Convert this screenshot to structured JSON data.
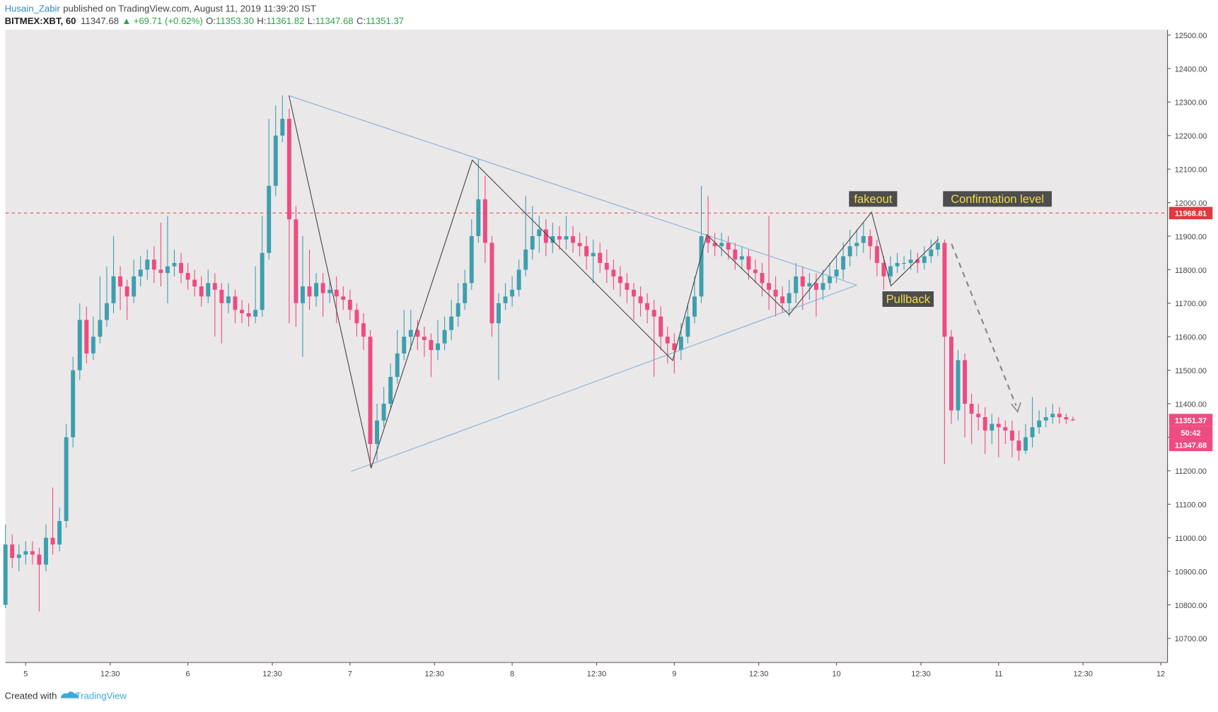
{
  "header": {
    "author": "Husain_Zabir",
    "published": "published on TradingView.com, August 11, 2019 11:39:20 IST",
    "symbol": "BITMEX:XBT, 60",
    "last": "11347.68",
    "arrow": "▲",
    "change": "+69.71 (+0.62%)",
    "o_label": "O:",
    "o": "11353.30",
    "h_label": "H:",
    "h": "11361.82",
    "l_label": "L:",
    "l": "11347.68",
    "c_label": "C:",
    "c": "11351.37"
  },
  "footer": {
    "created": "Created with",
    "brand": "TradingView"
  },
  "chart_data": {
    "type": "candlestick",
    "up_color": "#3d9fae",
    "down_color": "#ee4b81",
    "open": [
      10800,
      10980,
      10940,
      10950,
      10960,
      10950,
      10920,
      11000,
      10980,
      11050,
      11300,
      11500,
      11650,
      11550,
      11600,
      11650,
      11700,
      11780,
      11750,
      11720,
      11780,
      11800,
      11830,
      11800,
      11790,
      11810,
      11820,
      11790,
      11770,
      11750,
      11720,
      11760,
      11740,
      11700,
      11720,
      11680,
      11670,
      11660,
      11680,
      11850,
      12050,
      12200,
      12250,
      11950,
      11700,
      11750,
      11720,
      11760,
      11730,
      11740,
      11720,
      11710,
      11680,
      11640,
      11600,
      11280,
      11350,
      11400,
      11480,
      11550,
      11600,
      11620,
      11600,
      11590,
      11560,
      11580,
      11620,
      11660,
      11700,
      11760,
      11900,
      12010,
      11880,
      11640,
      11700,
      11720,
      11740,
      11800,
      11860,
      11900,
      11920,
      11880,
      11900,
      11890,
      11900,
      11880,
      11870,
      11840,
      11850,
      11820,
      11800,
      11780,
      11760,
      11740,
      11720,
      11700,
      11680,
      11660,
      11600,
      11580,
      11560,
      11600,
      11660,
      11720,
      11900,
      11880,
      11870,
      11880,
      11860,
      11830,
      11840,
      11800,
      11790,
      11760,
      11740,
      11720,
      11700,
      11730,
      11780,
      11750,
      11760,
      11740,
      11760,
      11780,
      11800,
      11840,
      11870,
      11880,
      11900,
      11870,
      11820,
      11780,
      11810,
      11820,
      11820,
      11830,
      11820,
      11840,
      11860,
      11880,
      11600,
      11380,
      11530,
      11400,
      11370,
      11360,
      11320,
      11340,
      11330,
      11320,
      11290,
      11260,
      11300,
      11330,
      11350,
      11360,
      11370,
      11360,
      11353.3
    ],
    "high": [
      11040,
      11010,
      10980,
      10990,
      10990,
      10970,
      11040,
      11150,
      11090,
      11340,
      11540,
      11700,
      11690,
      11660,
      11780,
      11810,
      11900,
      11810,
      11770,
      11830,
      11840,
      11860,
      11870,
      11940,
      11960,
      11860,
      11850,
      11820,
      11800,
      11780,
      11800,
      11790,
      11760,
      11760,
      11740,
      11710,
      11700,
      11810,
      11960,
      12250,
      12290,
      12320,
      12280,
      11990,
      11900,
      11860,
      11790,
      11790,
      11770,
      11780,
      11750,
      11740,
      11700,
      11670,
      11620,
      11400,
      11450,
      11520,
      11620,
      11680,
      11680,
      11650,
      11630,
      11610,
      11650,
      11660,
      11710,
      11760,
      11800,
      11950,
      12130,
      12080,
      11900,
      11730,
      11760,
      11780,
      11830,
      12020,
      11990,
      11960,
      11950,
      11940,
      11930,
      11960,
      11930,
      11910,
      11900,
      11890,
      11880,
      11860,
      11830,
      11810,
      11790,
      11760,
      11750,
      11730,
      11710,
      11690,
      11630,
      11610,
      11640,
      11700,
      11780,
      12050,
      12020,
      11910,
      11910,
      11900,
      11880,
      11870,
      11860,
      11830,
      11820,
      11960,
      11780,
      11750,
      11770,
      11820,
      11810,
      11790,
      11790,
      11800,
      11820,
      11840,
      11880,
      11920,
      11920,
      11940,
      11920,
      11890,
      11840,
      11840,
      11850,
      11840,
      11860,
      11850,
      11870,
      11890,
      11900,
      11890,
      11620,
      11560,
      11550,
      11430,
      11400,
      11390,
      11370,
      11360,
      11350,
      11350,
      11320,
      11340,
      11420,
      11380,
      11390,
      11400,
      11390,
      11370,
      11361.82
    ],
    "low": [
      10790,
      10910,
      10900,
      10920,
      10920,
      10780,
      10900,
      10950,
      10960,
      11030,
      11270,
      11470,
      11520,
      11530,
      11580,
      11630,
      11670,
      11680,
      11650,
      11700,
      11750,
      11770,
      11760,
      11750,
      11700,
      11780,
      11760,
      11740,
      11720,
      11690,
      11700,
      11600,
      11580,
      11670,
      11640,
      11640,
      11630,
      11640,
      11660,
      11830,
      12020,
      12180,
      11640,
      11630,
      11540,
      11680,
      11690,
      11660,
      11700,
      11640,
      11680,
      11650,
      11600,
      11560,
      11210,
      11230,
      11330,
      11380,
      11460,
      11530,
      11560,
      11560,
      11540,
      11480,
      11530,
      11560,
      11590,
      11630,
      11680,
      11740,
      11880,
      11820,
      11600,
      11470,
      11680,
      11690,
      11720,
      11780,
      11830,
      11850,
      11840,
      11850,
      11860,
      11860,
      11850,
      11840,
      11800,
      11760,
      11790,
      11760,
      11740,
      11720,
      11700,
      11650,
      11660,
      11640,
      11480,
      11560,
      11520,
      11490,
      11530,
      11580,
      11640,
      11700,
      11850,
      11840,
      11840,
      11830,
      11800,
      11800,
      11770,
      11760,
      11720,
      11680,
      11660,
      11670,
      11660,
      11700,
      11680,
      11710,
      11660,
      11710,
      11740,
      11760,
      11770,
      11810,
      11840,
      11850,
      11830,
      11780,
      11740,
      11760,
      11790,
      11800,
      11800,
      11790,
      11800,
      11820,
      11840,
      11220,
      11340,
      11350,
      11300,
      11280,
      11320,
      11250,
      11280,
      11240,
      11280,
      11240,
      11230,
      11250,
      11270,
      11310,
      11330,
      11340,
      11340,
      11340,
      11347.68
    ],
    "close": [
      10980,
      10940,
      10950,
      10960,
      10950,
      10920,
      11000,
      10980,
      11050,
      11300,
      11500,
      11650,
      11550,
      11600,
      11650,
      11700,
      11780,
      11750,
      11720,
      11780,
      11800,
      11830,
      11800,
      11790,
      11810,
      11820,
      11790,
      11770,
      11750,
      11720,
      11760,
      11740,
      11700,
      11720,
      11680,
      11670,
      11660,
      11680,
      11850,
      12050,
      12200,
      12250,
      11950,
      11700,
      11750,
      11720,
      11760,
      11730,
      11740,
      11720,
      11710,
      11680,
      11640,
      11600,
      11280,
      11350,
      11400,
      11480,
      11550,
      11600,
      11620,
      11600,
      11590,
      11560,
      11580,
      11620,
      11660,
      11700,
      11760,
      11900,
      12010,
      11880,
      11640,
      11700,
      11720,
      11740,
      11800,
      11860,
      11900,
      11920,
      11880,
      11900,
      11890,
      11900,
      11880,
      11870,
      11840,
      11850,
      11820,
      11800,
      11780,
      11760,
      11740,
      11720,
      11700,
      11680,
      11660,
      11600,
      11580,
      11560,
      11600,
      11660,
      11720,
      11900,
      11880,
      11870,
      11880,
      11860,
      11830,
      11840,
      11800,
      11790,
      11760,
      11740,
      11720,
      11700,
      11730,
      11780,
      11750,
      11760,
      11740,
      11760,
      11780,
      11800,
      11840,
      11870,
      11880,
      11900,
      11870,
      11820,
      11780,
      11810,
      11820,
      11820,
      11830,
      11820,
      11840,
      11860,
      11880,
      11600,
      11380,
      11530,
      11400,
      11370,
      11360,
      11320,
      11340,
      11330,
      11320,
      11290,
      11260,
      11300,
      11330,
      11350,
      11360,
      11370,
      11360,
      11353.3,
      11351.37
    ],
    "xlim": [
      0,
      172
    ],
    "xticks": [
      {
        "value": 3,
        "label": "5"
      },
      {
        "value": 15.5,
        "label": "12:30"
      },
      {
        "value": 27,
        "label": "6"
      },
      {
        "value": 39.5,
        "label": "12:30"
      },
      {
        "value": 51,
        "label": "7"
      },
      {
        "value": 63.5,
        "label": "12:30"
      },
      {
        "value": 75,
        "label": "8"
      },
      {
        "value": 87.5,
        "label": "12:30"
      },
      {
        "value": 99,
        "label": "9"
      },
      {
        "value": 111.5,
        "label": "12:30"
      },
      {
        "value": 123,
        "label": "10"
      },
      {
        "value": 135.5,
        "label": "12:30"
      },
      {
        "value": 147,
        "label": "11"
      },
      {
        "value": 159.5,
        "label": "12:30"
      },
      {
        "value": 171,
        "label": "12"
      }
    ],
    "ylim": [
      10628,
      12516
    ],
    "yticks": [
      {
        "value": 10700,
        "label": "10700.00"
      },
      {
        "value": 10800,
        "label": "10800.00"
      },
      {
        "value": 10900,
        "label": "10900.00"
      },
      {
        "value": 11000,
        "label": "11000.00"
      },
      {
        "value": 11100,
        "label": "11100.00"
      },
      {
        "value": 11200,
        "label": "11200.00"
      },
      {
        "value": 11300,
        "label": "11300.00"
      },
      {
        "value": 11400,
        "label": "11400.00"
      },
      {
        "value": 11500,
        "label": "11500.00"
      },
      {
        "value": 11600,
        "label": "11600.00"
      },
      {
        "value": 11700,
        "label": "11700.00"
      },
      {
        "value": 11800,
        "label": "11800.00"
      },
      {
        "value": 11900,
        "label": "11900.00"
      },
      {
        "value": 12000,
        "label": "12000.00"
      },
      {
        "value": 12100,
        "label": "12100.00"
      },
      {
        "value": 12200,
        "label": "12200.00"
      },
      {
        "value": 12300,
        "label": "12300.00"
      },
      {
        "value": 12400,
        "label": "12400.00"
      },
      {
        "value": 12500,
        "label": "12500.00"
      }
    ],
    "hline": 11968.81,
    "price_labels": [
      11351.37,
      11347.68
    ],
    "countdown": "50:42",
    "annotations": [
      "fakeout",
      "Confirmation level",
      "Pullback"
    ]
  }
}
